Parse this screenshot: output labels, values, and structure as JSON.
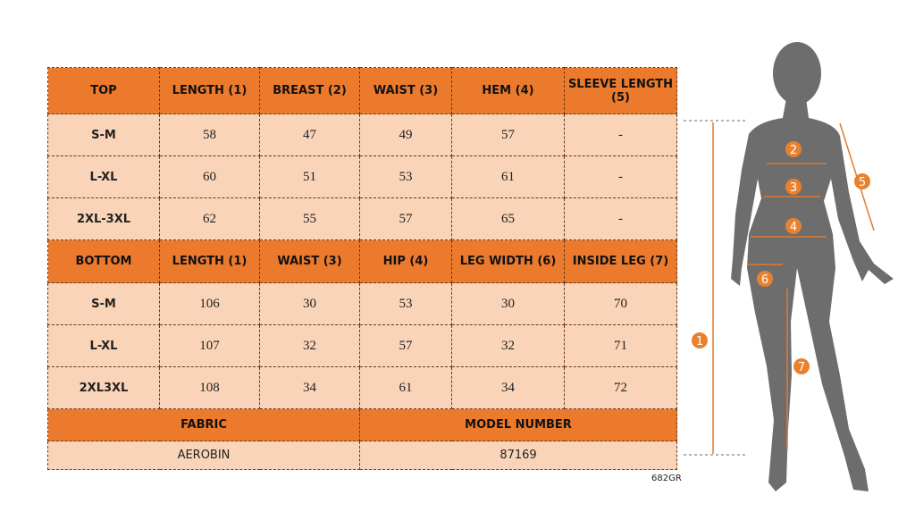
{
  "table": {
    "top_header": [
      "TOP",
      "LENGTH (1)",
      "BREAST (2)",
      "WAIST (3)",
      "HEM (4)",
      "SLEEVE LENGTH (5)"
    ],
    "top_rows": [
      [
        "S-M",
        58,
        47,
        49,
        57,
        "-"
      ],
      [
        "L-XL",
        60,
        51,
        53,
        61,
        "-"
      ],
      [
        "2XL-3XL",
        62,
        55,
        57,
        65,
        "-"
      ]
    ],
    "bottom_header": [
      "BOTTOM",
      "LENGTH (1)",
      "WAIST (3)",
      "HIP (4)",
      "LEG WIDTH (6)",
      "INSIDE LEG (7)"
    ],
    "bottom_rows": [
      [
        "S-M",
        106,
        30,
        53,
        30,
        70
      ],
      [
        "L-XL",
        107,
        32,
        57,
        32,
        71
      ],
      [
        "2XL3XL",
        108,
        34,
        61,
        34,
        72
      ]
    ],
    "footer_header": [
      "FABRIC",
      "MODEL NUMBER"
    ],
    "footer_values": [
      "AEROBIN",
      87169
    ]
  },
  "code": "682GR",
  "figure": {
    "markers": [
      "1",
      "2",
      "3",
      "4",
      "5",
      "6",
      "7"
    ]
  }
}
